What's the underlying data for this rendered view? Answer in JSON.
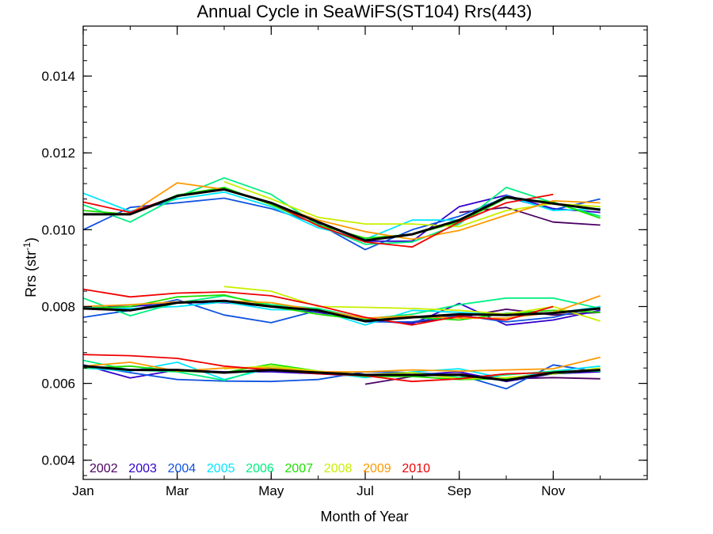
{
  "chart_data": {
    "type": "line",
    "title": "Annual Cycle in SeaWiFS(ST104) Rrs(443)",
    "xlabel": "Month of Year",
    "ylabel_main": "Rrs (str",
    "ylabel_sup": "-1",
    "ylabel_close": ")",
    "xlim": [
      1,
      13
    ],
    "ylim": [
      0.0035,
      0.0153
    ],
    "x_ticks": [
      {
        "value": 1,
        "label": "Jan"
      },
      {
        "value": 3,
        "label": "Mar"
      },
      {
        "value": 5,
        "label": "May"
      },
      {
        "value": 7,
        "label": "Jul"
      },
      {
        "value": 9,
        "label": "Sep"
      },
      {
        "value": 11,
        "label": "Nov"
      }
    ],
    "x_minor_ticks": [
      1,
      2,
      3,
      4,
      5,
      6,
      7,
      8,
      9,
      10,
      11,
      12,
      13
    ],
    "y_ticks": [
      {
        "value": 0.004,
        "label": "0.004"
      },
      {
        "value": 0.006,
        "label": "0.006"
      },
      {
        "value": 0.008,
        "label": "0.008"
      },
      {
        "value": 0.01,
        "label": "0.010"
      },
      {
        "value": 0.012,
        "label": "0.012"
      },
      {
        "value": 0.014,
        "label": "0.014"
      }
    ],
    "y_minor_step": 0.0004,
    "grid": false,
    "legend_position": "bottom-left",
    "x": [
      1,
      2,
      3,
      4,
      5,
      6,
      7,
      8,
      9,
      10,
      11,
      12
    ],
    "series": [
      {
        "name": "2002",
        "color": "#4b0063",
        "bands": [
          [
            null,
            null,
            null,
            null,
            null,
            null,
            null,
            null,
            0.01045,
            0.01058,
            0.0102,
            0.01012
          ],
          [
            null,
            null,
            null,
            null,
            null,
            null,
            0.00762,
            0.00758,
            0.00772,
            0.00793,
            0.00778,
            0.00785
          ],
          [
            null,
            null,
            null,
            null,
            null,
            null,
            0.00598,
            0.00618,
            0.00625,
            0.00612,
            0.00615,
            0.00612
          ]
        ]
      },
      {
        "name": "2003",
        "color": "#3300cc",
        "bands": [
          [
            null,
            null,
            null,
            null,
            null,
            null,
            0.0097,
            0.0097,
            0.0106,
            0.0109,
            0.01055,
            0.01045
          ],
          [
            0.008,
            0.008,
            0.0081,
            0.0081,
            0.008,
            0.00785,
            0.00765,
            0.00755,
            0.00808,
            0.00752,
            0.00765,
            0.0079
          ],
          [
            0.00648,
            0.00614,
            0.00635,
            0.0063,
            0.0063,
            0.00625,
            0.00618,
            0.00622,
            0.0063,
            0.00605,
            0.00625,
            0.0063
          ]
        ]
      },
      {
        "name": "2004",
        "color": "#0f52e0",
        "bands": [
          [
            0.01,
            0.01058,
            0.0107,
            0.01082,
            0.01055,
            0.01015,
            0.00948,
            0.01,
            0.01035,
            0.01085,
            0.01052,
            0.0108
          ],
          [
            0.00772,
            0.0079,
            0.00818,
            0.00778,
            0.00758,
            0.0079,
            0.0076,
            0.0076,
            0.00778,
            0.0076,
            0.00772,
            0.008
          ],
          [
            0.00648,
            0.00628,
            0.0061,
            0.00606,
            0.00605,
            0.0061,
            0.0063,
            0.00628,
            0.00622,
            0.00586,
            0.00648,
            0.0063
          ]
        ]
      },
      {
        "name": "2005",
        "color": "#00e6ff",
        "bands": [
          [
            0.01095,
            0.01048,
            0.0108,
            0.01098,
            0.0106,
            0.01005,
            0.00975,
            0.01025,
            0.01025,
            0.01088,
            0.0105,
            0.01055
          ],
          [
            0.008,
            0.00795,
            0.008,
            0.00812,
            0.00792,
            0.0079,
            0.00752,
            0.0079,
            0.00785,
            0.00778,
            0.00782,
            0.008
          ],
          [
            0.0064,
            0.00632,
            0.00655,
            0.0061,
            0.0064,
            0.0063,
            0.00615,
            0.0063,
            0.00638,
            0.00612,
            0.00632,
            0.00645
          ]
        ]
      },
      {
        "name": "2006",
        "color": "#00f080",
        "bands": [
          [
            0.01065,
            0.0102,
            0.01085,
            0.01135,
            0.01092,
            0.01012,
            0.00962,
            0.00968,
            0.01015,
            0.0111,
            0.0107,
            0.01035
          ],
          [
            0.00822,
            0.00776,
            0.0081,
            0.00828,
            0.00805,
            0.00795,
            0.00768,
            0.0078,
            0.00805,
            0.00822,
            0.00822,
            0.00795
          ],
          [
            0.0066,
            0.00635,
            0.0063,
            0.00608,
            0.00645,
            0.00628,
            0.00622,
            0.00628,
            0.00615,
            0.00622,
            0.00632,
            0.00632
          ]
        ]
      },
      {
        "name": "2007",
        "color": "#1ee000",
        "bands": [
          [
            0.0105,
            0.0104,
            0.0109,
            0.0111,
            0.01065,
            0.01012,
            0.00978,
            0.00988,
            0.0102,
            0.01082,
            0.01072,
            0.0103
          ],
          [
            0.00795,
            0.008,
            0.00825,
            0.0083,
            0.008,
            0.0078,
            0.00765,
            0.00772,
            0.00765,
            0.00782,
            0.0079,
            0.00785
          ],
          [
            0.0064,
            0.00645,
            0.00632,
            0.00628,
            0.0065,
            0.00632,
            0.00618,
            0.00618,
            0.0061,
            0.00612,
            0.00625,
            0.00635
          ]
        ]
      },
      {
        "name": "2008",
        "color": "#c8f000",
        "bands": [
          [
            null,
            null,
            null,
            0.01125,
            0.0108,
            0.01032,
            0.01015,
            0.01015,
            0.01008,
            0.0105,
            0.01068,
            0.0106
          ],
          [
            null,
            null,
            null,
            0.00852,
            0.0084,
            0.008,
            0.00798,
            0.00795,
            0.0079,
            0.0078,
            0.008,
            0.00762
          ],
          [
            null,
            null,
            null,
            0.00638,
            0.00645,
            0.00632,
            0.00622,
            0.00628,
            0.00612,
            0.00615,
            0.00625,
            0.0064
          ]
        ]
      },
      {
        "name": "2009",
        "color": "#ff9900",
        "bands": [
          [
            0.0104,
            0.01042,
            0.01122,
            0.01105,
            0.01068,
            0.01025,
            0.00995,
            0.00975,
            0.00998,
            0.01038,
            0.01075,
            0.0107
          ],
          [
            0.008,
            0.00805,
            0.00812,
            0.00815,
            0.0081,
            0.0079,
            0.0077,
            0.00775,
            0.0077,
            0.0077,
            0.00785,
            0.00828
          ],
          [
            0.00645,
            0.00655,
            0.00632,
            0.0064,
            0.0064,
            0.0063,
            0.0063,
            0.00635,
            0.00632,
            0.00635,
            0.00638,
            0.00668
          ]
        ]
      },
      {
        "name": "2010",
        "color": "#f00000",
        "bands": [
          [
            0.01072,
            0.01045,
            0.01088,
            0.01105,
            0.0107,
            0.0101,
            0.00968,
            0.00955,
            0.0102,
            0.0107,
            0.01092,
            null
          ],
          [
            0.00845,
            0.00825,
            0.00835,
            0.00838,
            0.00828,
            0.00802,
            0.00772,
            0.00752,
            0.00775,
            0.00765,
            0.008,
            null
          ],
          [
            0.00675,
            0.00672,
            0.00665,
            0.00645,
            0.00635,
            0.00625,
            0.0062,
            0.00605,
            0.00612,
            0.00625,
            0.00628,
            null
          ]
        ]
      },
      {
        "name": "",
        "color": "#000000",
        "bands": [
          [
            0.0104,
            0.0104,
            0.01088,
            0.01105,
            0.0107,
            0.0102,
            0.00972,
            0.00988,
            0.01025,
            0.01085,
            0.01068,
            0.01052
          ],
          [
            0.00795,
            0.0079,
            0.0081,
            0.00815,
            0.008,
            0.0079,
            0.00762,
            0.00772,
            0.0078,
            0.00778,
            0.00783,
            0.00795
          ],
          [
            0.00645,
            0.00635,
            0.00635,
            0.00628,
            0.00635,
            0.00628,
            0.00622,
            0.00622,
            0.00622,
            0.00608,
            0.00628,
            0.00635
          ]
        ]
      }
    ]
  }
}
